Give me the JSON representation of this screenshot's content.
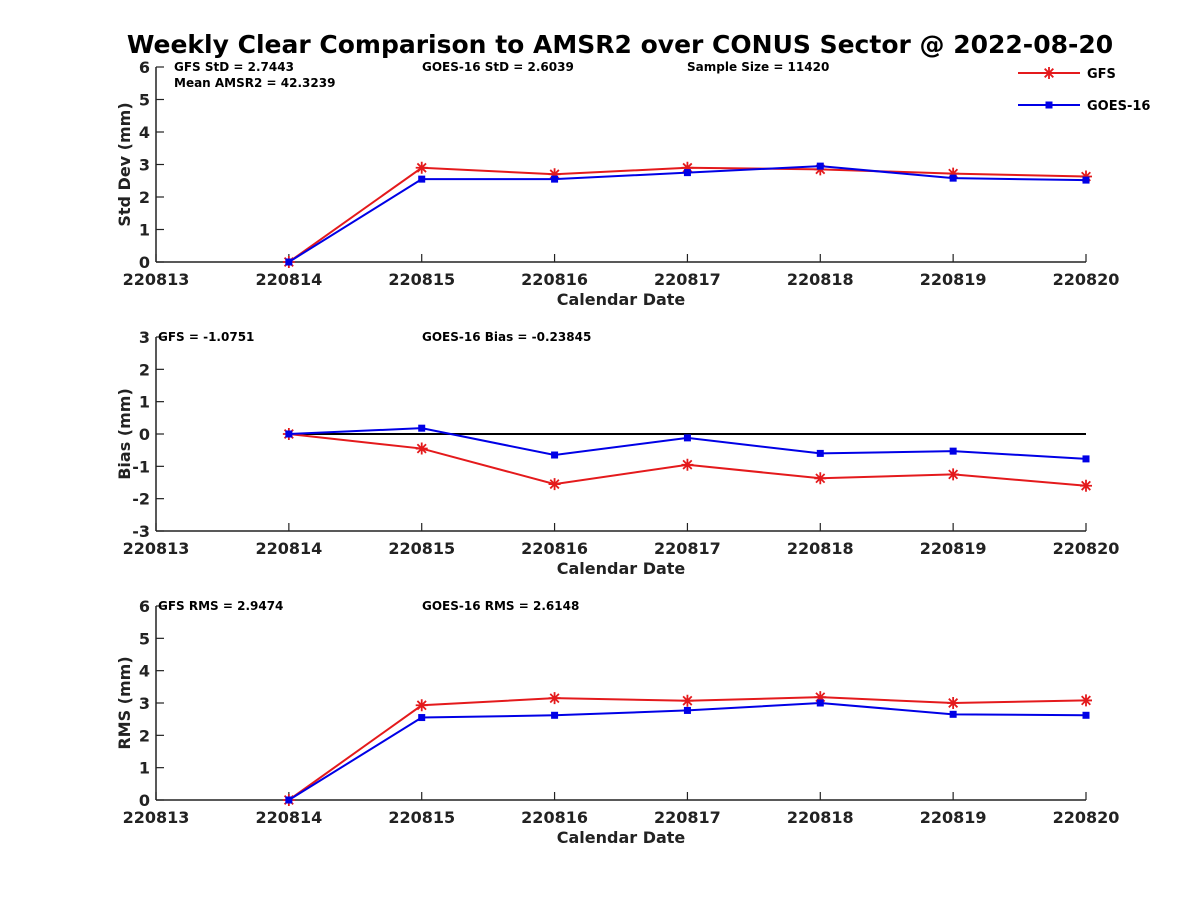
{
  "title": "Weekly Clear Comparison to AMSR2 over CONUS Sector @ 2022-08-20",
  "legend": [
    {
      "label": "GFS",
      "color": "#e41a1c",
      "marker": "asterisk"
    },
    {
      "label": "GOES-16",
      "color": "#0000e6",
      "marker": "square"
    }
  ],
  "chart_data": [
    {
      "type": "line",
      "x": [
        "220813",
        "220814",
        "220815",
        "220816",
        "220817",
        "220818",
        "220819",
        "220820"
      ],
      "xlabel": "Calendar Date",
      "ylabel": "Std Dev (mm)",
      "ylim": [
        0,
        6
      ],
      "yticks": [
        "0",
        "1",
        "2",
        "3",
        "4",
        "5",
        "6"
      ],
      "annotations": [
        "GFS StD = 2.7443",
        "Mean AMSR2 = 42.3239",
        "GOES-16 StD = 2.6039",
        "Sample Size = 11420"
      ],
      "series": [
        {
          "name": "GFS",
          "color": "#e41a1c",
          "values": [
            null,
            0.0,
            2.9,
            2.7,
            2.9,
            2.85,
            2.72,
            2.63
          ]
        },
        {
          "name": "GOES-16",
          "color": "#0000e6",
          "values": [
            null,
            0.0,
            2.55,
            2.55,
            2.75,
            2.95,
            2.58,
            2.52
          ]
        }
      ]
    },
    {
      "type": "line",
      "x": [
        "220813",
        "220814",
        "220815",
        "220816",
        "220817",
        "220818",
        "220819",
        "220820"
      ],
      "xlabel": "Calendar Date",
      "ylabel": "Bias (mm)",
      "ylim": [
        -3,
        3
      ],
      "yticks": [
        "-3",
        "-2",
        "-1",
        "0",
        "1",
        "2",
        "3"
      ],
      "reference_line": 0,
      "annotations": [
        "GFS = -1.0751",
        "GOES-16 Bias  = -0.23845"
      ],
      "series": [
        {
          "name": "GFS",
          "color": "#e41a1c",
          "values": [
            null,
            0.0,
            -0.45,
            -1.55,
            -0.95,
            -1.37,
            -1.25,
            -1.6
          ]
        },
        {
          "name": "GOES-16",
          "color": "#0000e6",
          "values": [
            null,
            0.0,
            0.18,
            -0.65,
            -0.12,
            -0.6,
            -0.53,
            -0.77
          ]
        }
      ]
    },
    {
      "type": "line",
      "x": [
        "220813",
        "220814",
        "220815",
        "220816",
        "220817",
        "220818",
        "220819",
        "220820"
      ],
      "xlabel": "Calendar Date",
      "ylabel": "RMS (mm)",
      "ylim": [
        0,
        6
      ],
      "yticks": [
        "0",
        "1",
        "2",
        "3",
        "4",
        "5",
        "6"
      ],
      "annotations": [
        "GFS RMS = 2.9474",
        "GOES-16 RMS = 2.6148"
      ],
      "series": [
        {
          "name": "GFS",
          "color": "#e41a1c",
          "values": [
            null,
            0.0,
            2.93,
            3.15,
            3.07,
            3.18,
            3.0,
            3.08
          ]
        },
        {
          "name": "GOES-16",
          "color": "#0000e6",
          "values": [
            null,
            0.0,
            2.55,
            2.62,
            2.77,
            3.0,
            2.65,
            2.62
          ]
        }
      ]
    }
  ]
}
